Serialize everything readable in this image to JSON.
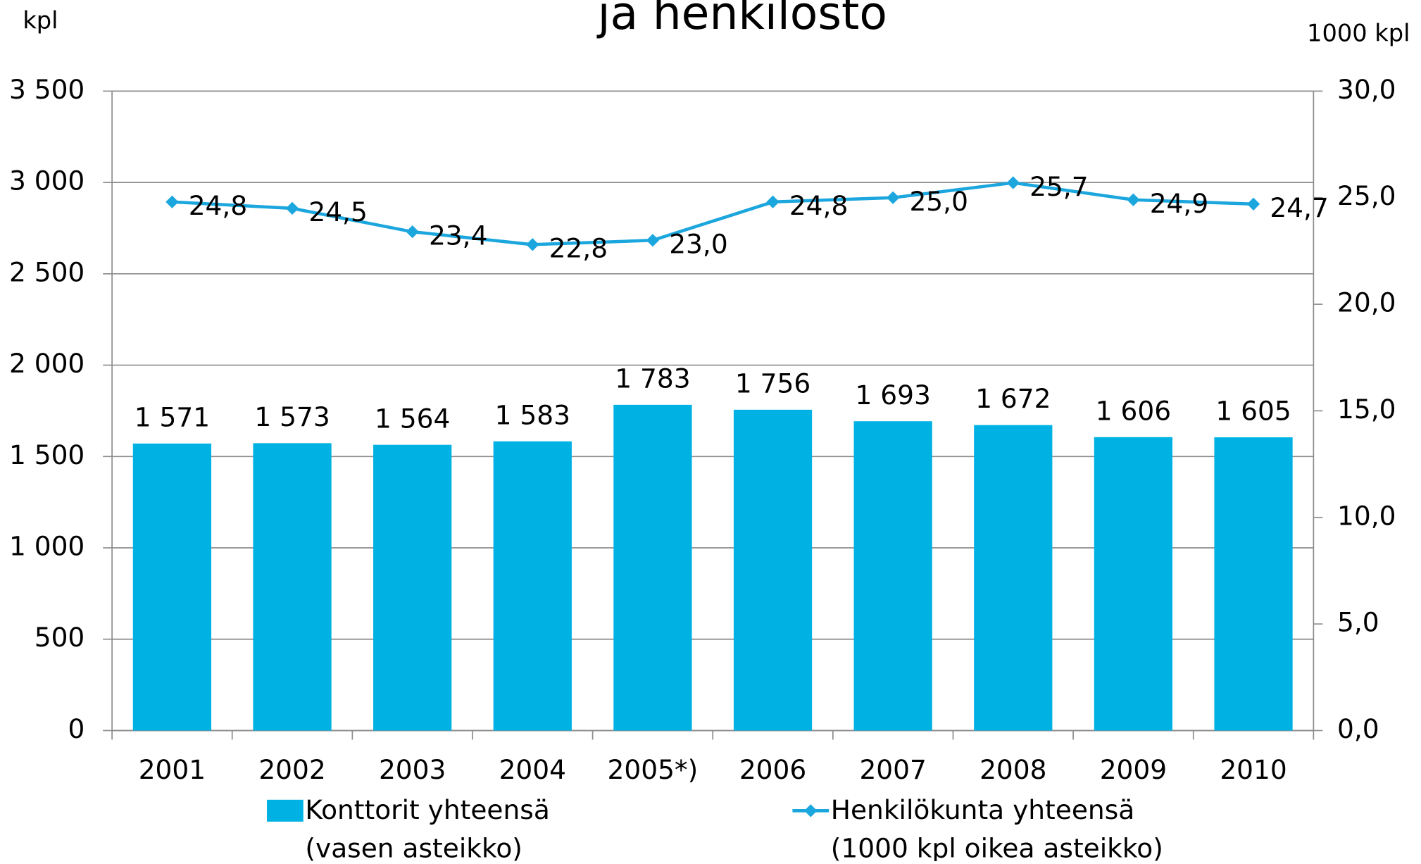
{
  "chart_data": {
    "type": "bar-line",
    "title": "ja henkilöstö",
    "y_label": "kpl",
    "y2_label": "1000 kpl",
    "categories": [
      "2001",
      "2002",
      "2003",
      "2004",
      "2005*)",
      "2006",
      "2007",
      "2008",
      "2009",
      "2010"
    ],
    "series": [
      {
        "name": "Konttorit yhteensä\n(vasen asteikko)",
        "type": "bar",
        "color": "#00b2e3",
        "values": [
          1571,
          1573,
          1564,
          1583,
          1783,
          1756,
          1693,
          1672,
          1606,
          1605
        ],
        "value_labels": [
          "1 571",
          "1 573",
          "1 564",
          "1 583",
          "1 783",
          "1 756",
          "1 693",
          "1 672",
          "1 606",
          "1 605"
        ]
      },
      {
        "name": "Henkilökunta yhteensä\n(1000 kpl oikea asteikko)",
        "type": "line",
        "axis": "y2",
        "color": "#1ba6dd",
        "values": [
          24.8,
          24.5,
          23.4,
          22.8,
          23.0,
          24.8,
          25.0,
          25.7,
          24.9,
          24.7
        ],
        "value_labels": [
          "24,8",
          "24,5",
          "23,4",
          "22,8",
          "23,0",
          "24,8",
          "25,0",
          "25,7",
          "24,9",
          "24,7"
        ]
      }
    ],
    "ylim": [
      0,
      3500
    ],
    "yticks": [
      0,
      500,
      {
        "value": 1000,
        "label": "1 000"
      },
      {
        "value": 1500,
        "label": "1 500"
      },
      {
        "value": 2000,
        "label": "2 000"
      },
      {
        "value": 2500,
        "label": "2 500"
      },
      {
        "value": 3000,
        "label": "3 000"
      },
      {
        "value": 3500,
        "label": "3 500"
      }
    ],
    "y2lim": [
      0,
      30
    ],
    "y2ticks": [
      {
        "value": 0,
        "label": "0,0"
      },
      {
        "value": 5,
        "label": "5,0"
      },
      {
        "value": 10,
        "label": "10,0"
      },
      {
        "value": 15,
        "label": "15,0"
      },
      {
        "value": 20,
        "label": "20,0"
      },
      {
        "value": 25,
        "label": "25,0"
      },
      {
        "value": 30,
        "label": "30,0"
      }
    ],
    "grid": true
  }
}
